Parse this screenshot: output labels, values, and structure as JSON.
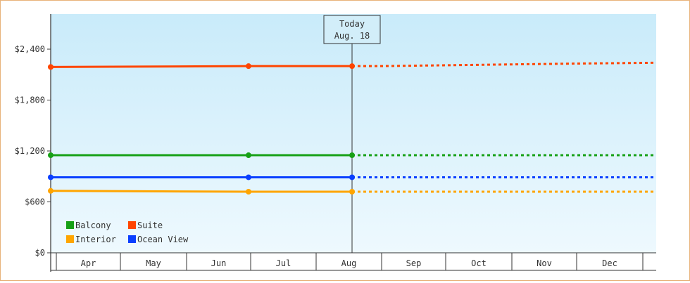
{
  "chart_data": {
    "type": "line",
    "title": "",
    "xlabel": "",
    "ylabel": "",
    "categories": [
      "Apr",
      "May",
      "Jun",
      "Jul",
      "Aug",
      "Sep",
      "Oct",
      "Nov",
      "Dec"
    ],
    "yticks": [
      "$0",
      "$600",
      "$1,200",
      "$1,800",
      "$2,400"
    ],
    "ylim": [
      0,
      2400
    ],
    "grid": false,
    "legend_placement": "bottom-left",
    "today_marker": {
      "line1": "Today",
      "line2": "Aug. 18"
    },
    "series": [
      {
        "name": "Balcony",
        "color": "#16a016",
        "actual": [
          [
            "Apr 1",
            1150
          ],
          [
            "Jun 30",
            1150
          ],
          [
            "Aug 18",
            1150
          ]
        ],
        "forecast": [
          [
            "Aug 18",
            1150
          ],
          [
            "Dec 31",
            1150
          ]
        ]
      },
      {
        "name": "Suite",
        "color": "#ff4500",
        "actual": [
          [
            "Apr 1",
            2190
          ],
          [
            "Jun 30",
            2200
          ],
          [
            "Aug 18",
            2200
          ]
        ],
        "forecast": [
          [
            "Aug 18",
            2200
          ],
          [
            "Aug 31",
            2200
          ],
          [
            "Sep 30",
            2210
          ],
          [
            "Oct 31",
            2220
          ],
          [
            "Nov 30",
            2230
          ],
          [
            "Dec 31",
            2240
          ]
        ]
      },
      {
        "name": "Interior",
        "color": "#ffa500",
        "actual": [
          [
            "Apr 1",
            730
          ],
          [
            "Jun 30",
            720
          ],
          [
            "Aug 18",
            720
          ]
        ],
        "forecast": [
          [
            "Aug 18",
            720
          ],
          [
            "Dec 31",
            720
          ]
        ]
      },
      {
        "name": "Ocean View",
        "color": "#0a3fff",
        "actual": [
          [
            "Apr 1",
            890
          ],
          [
            "Jun 30",
            890
          ],
          [
            "Aug 18",
            890
          ]
        ],
        "forecast": [
          [
            "Aug 18",
            890
          ],
          [
            "Dec 31",
            890
          ]
        ]
      }
    ]
  }
}
